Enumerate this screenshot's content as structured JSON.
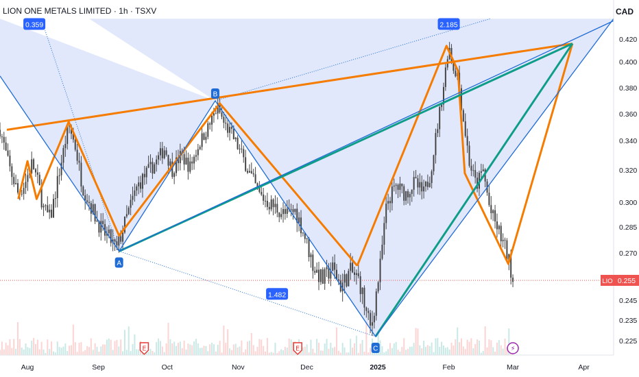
{
  "header": {
    "symbol_name": "LION ONE METALS LIMITED",
    "interval": "1h",
    "exchange": "TSXV",
    "currency": "CAD",
    "separator": " · "
  },
  "price_tag": {
    "symbol": "LIO",
    "value": "0.255"
  },
  "colors": {
    "orange": "#f57c00",
    "teal": "#0f9d8a",
    "blue": "#1e6bd6",
    "fill": "#d7e0fb",
    "candle": "#444444",
    "price_line": "#ef5350"
  },
  "chart_data": {
    "type": "line",
    "title": "LION ONE METALS LIMITED · 1h · TSXV",
    "ylabel": "CAD",
    "ylim": [
      0.218,
      0.438
    ],
    "y_ticks": [
      "0.225",
      "0.235",
      "0.245",
      "0.255",
      "0.270",
      "0.285",
      "0.300",
      "0.320",
      "0.340",
      "0.360",
      "0.380",
      "0.400",
      "0.420"
    ],
    "x_ticks": [
      {
        "label": "Aug",
        "date": "2024-08-01"
      },
      {
        "label": "Sep",
        "date": "2024-09-01"
      },
      {
        "label": "Oct",
        "date": "2024-10-01"
      },
      {
        "label": "Nov",
        "date": "2024-11-01"
      },
      {
        "label": "Dec",
        "date": "2024-12-01"
      },
      {
        "label": "2025",
        "date": "2025-01-01"
      },
      {
        "label": "Feb",
        "date": "2025-02-01"
      },
      {
        "label": "Mar",
        "date": "2025-03-01"
      },
      {
        "label": "Apr",
        "date": "2025-04-01"
      }
    ],
    "x_range": [
      "2024-07-20",
      "2025-04-14"
    ],
    "last_price": 0.255,
    "price_series": [
      [
        "2024-07-20",
        0.348
      ],
      [
        "2024-07-24",
        0.322
      ],
      [
        "2024-07-28",
        0.305
      ],
      [
        "2024-07-31",
        0.312
      ],
      [
        "2024-08-03",
        0.325
      ],
      [
        "2024-08-06",
        0.31
      ],
      [
        "2024-08-08",
        0.296
      ],
      [
        "2024-08-11",
        0.29
      ],
      [
        "2024-08-14",
        0.312
      ],
      [
        "2024-08-17",
        0.335
      ],
      [
        "2024-08-19",
        0.352
      ],
      [
        "2024-08-22",
        0.335
      ],
      [
        "2024-08-25",
        0.31
      ],
      [
        "2024-08-28",
        0.3
      ],
      [
        "2024-08-31",
        0.29
      ],
      [
        "2024-09-03",
        0.282
      ],
      [
        "2024-09-06",
        0.278
      ],
      [
        "2024-09-09",
        0.272
      ],
      [
        "2024-09-12",
        0.285
      ],
      [
        "2024-09-15",
        0.298
      ],
      [
        "2024-09-18",
        0.31
      ],
      [
        "2024-09-22",
        0.318
      ],
      [
        "2024-09-26",
        0.325
      ],
      [
        "2024-09-30",
        0.335
      ],
      [
        "2024-10-03",
        0.32
      ],
      [
        "2024-10-07",
        0.33
      ],
      [
        "2024-10-11",
        0.322
      ],
      [
        "2024-10-15",
        0.338
      ],
      [
        "2024-10-19",
        0.35
      ],
      [
        "2024-10-23",
        0.365
      ],
      [
        "2024-10-26",
        0.352
      ],
      [
        "2024-10-29",
        0.345
      ],
      [
        "2024-11-02",
        0.332
      ],
      [
        "2024-11-06",
        0.318
      ],
      [
        "2024-11-10",
        0.305
      ],
      [
        "2024-11-14",
        0.3
      ],
      [
        "2024-11-18",
        0.296
      ],
      [
        "2024-11-22",
        0.292
      ],
      [
        "2024-11-26",
        0.295
      ],
      [
        "2024-11-30",
        0.28
      ],
      [
        "2024-12-04",
        0.262
      ],
      [
        "2024-12-08",
        0.255
      ],
      [
        "2024-12-12",
        0.262
      ],
      [
        "2024-12-16",
        0.252
      ],
      [
        "2024-12-20",
        0.26
      ],
      [
        "2024-12-24",
        0.255
      ],
      [
        "2024-12-27",
        0.238
      ],
      [
        "2024-12-29",
        0.23
      ],
      [
        "2025-01-02",
        0.262
      ],
      [
        "2025-01-05",
        0.3
      ],
      [
        "2025-01-09",
        0.31
      ],
      [
        "2025-01-13",
        0.305
      ],
      [
        "2025-01-17",
        0.312
      ],
      [
        "2025-01-21",
        0.305
      ],
      [
        "2025-01-24",
        0.318
      ],
      [
        "2025-01-27",
        0.35
      ],
      [
        "2025-01-30",
        0.385
      ],
      [
        "2025-02-01",
        0.415
      ],
      [
        "2025-02-03",
        0.395
      ],
      [
        "2025-02-05",
        0.39
      ],
      [
        "2025-02-07",
        0.36
      ],
      [
        "2025-02-10",
        0.325
      ],
      [
        "2025-02-13",
        0.31
      ],
      [
        "2025-02-16",
        0.32
      ],
      [
        "2025-02-19",
        0.295
      ],
      [
        "2025-02-22",
        0.285
      ],
      [
        "2025-02-25",
        0.275
      ],
      [
        "2025-02-28",
        0.262
      ],
      [
        "2025-03-01",
        0.255
      ]
    ],
    "patterns": [
      {
        "name": "orange-trendline",
        "color": "orange",
        "points": [
          [
            "2024-07-23",
            0.348
          ],
          [
            "2025-03-27",
            0.416
          ]
        ]
      },
      {
        "name": "orange-zigzag-left",
        "color": "orange",
        "points": [
          [
            "2024-07-28",
            0.302
          ],
          [
            "2024-08-01",
            0.326
          ],
          [
            "2024-08-05",
            0.302
          ],
          [
            "2024-08-19",
            0.354
          ],
          [
            "2024-09-10",
            0.28
          ],
          [
            "2024-10-24",
            0.368
          ],
          [
            "2024-12-23",
            0.263
          ]
        ]
      },
      {
        "name": "orange-zigzag-right",
        "color": "orange",
        "points": [
          [
            "2024-12-23",
            0.263
          ],
          [
            "2025-01-31",
            0.414
          ],
          [
            "2025-02-05",
            0.393
          ],
          [
            "2025-02-08",
            0.318
          ],
          [
            "2025-02-27",
            0.264
          ],
          [
            "2025-03-27",
            0.416
          ]
        ]
      },
      {
        "name": "teal-line-1",
        "color": "teal",
        "points": [
          [
            "2024-09-10",
            0.271
          ],
          [
            "2025-03-27",
            0.416
          ]
        ]
      },
      {
        "name": "teal-line-2",
        "color": "teal",
        "points": [
          [
            "2024-12-31",
            0.227
          ],
          [
            "2025-03-27",
            0.416
          ]
        ]
      },
      {
        "name": "xabcd-outline",
        "color": "blue",
        "points": [
          [
            "2024-07-20",
            0.389
          ],
          [
            "2024-09-10",
            0.271
          ],
          [
            "2024-10-22",
            0.37
          ],
          [
            "2024-12-31",
            0.227
          ],
          [
            "2025-04-14",
            0.438
          ]
        ]
      }
    ],
    "pattern_points": [
      {
        "label": "A",
        "date": "2024-09-10",
        "value": 0.271
      },
      {
        "label": "B",
        "date": "2024-10-22",
        "value": 0.37
      },
      {
        "label": "C",
        "date": "2024-12-31",
        "value": 0.227
      }
    ],
    "ratios": [
      {
        "label": "0.359",
        "date": "2024-08-04",
        "value": 0.433
      },
      {
        "label": "1.482",
        "date": "2024-11-18",
        "value": 0.248
      },
      {
        "label": "2.185",
        "date": "2025-02-01",
        "value": 0.433
      }
    ],
    "event_markers": [
      {
        "kind": "earnings",
        "glyph": "E",
        "date": "2024-09-21"
      },
      {
        "kind": "earnings",
        "glyph": "E",
        "date": "2024-11-27"
      },
      {
        "kind": "split",
        "glyph": "⚡",
        "date": "2025-03-01"
      }
    ]
  }
}
